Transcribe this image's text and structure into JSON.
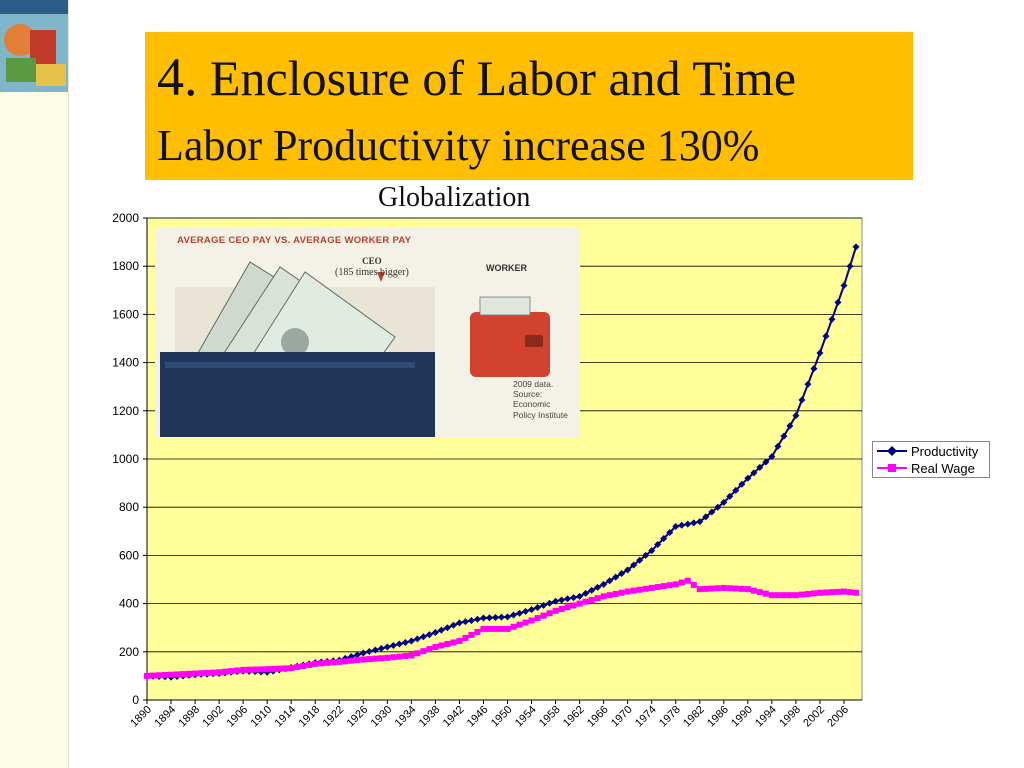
{
  "slide": {
    "title_number": "4.",
    "title_text": "Enclosure of Labor and Time",
    "title_line2": "Labor Productivity increase 130%",
    "annotation": "Globalization"
  },
  "inset": {
    "headline": "AVERAGE CEO PAY VS. AVERAGE WORKER PAY",
    "ceo_label": "CEO",
    "ceo_note": "(185 times bigger)",
    "worker_label": "WORKER",
    "source_note": [
      "2009 data.",
      "Source:",
      "Economic",
      "Policy Institute"
    ]
  },
  "colors": {
    "title_bg": "#ffbf00",
    "plot_bg": "#ffff99",
    "productivity": "#000080",
    "real_wage": "#ff00ff"
  },
  "chart_data": {
    "type": "line",
    "title": "",
    "xlabel": "",
    "ylabel": "",
    "ylim": [
      0,
      2000
    ],
    "yticks": [
      0,
      200,
      400,
      600,
      800,
      1000,
      1200,
      1400,
      1600,
      1800,
      2000
    ],
    "xlim": [
      1890,
      2009
    ],
    "xticks": [
      "1890",
      "1894",
      "1898",
      "1902",
      "1906",
      "1910",
      "1914",
      "1918",
      "1922",
      "1926",
      "1930",
      "1934",
      "1938",
      "1942",
      "1946",
      "1950",
      "1954",
      "1958",
      "1962",
      "1966",
      "1970",
      "1974",
      "1978",
      "1982",
      "1986",
      "1990",
      "1994",
      "1998",
      "2002",
      "2006"
    ],
    "grid": true,
    "legend_position": "right",
    "series": [
      {
        "name": "Productivity",
        "color": "#000080",
        "marker": "diamond",
        "points": [
          [
            1890,
            100
          ],
          [
            1894,
            95
          ],
          [
            1898,
            105
          ],
          [
            1902,
            110
          ],
          [
            1906,
            120
          ],
          [
            1910,
            115
          ],
          [
            1914,
            135
          ],
          [
            1918,
            155
          ],
          [
            1922,
            165
          ],
          [
            1926,
            195
          ],
          [
            1930,
            220
          ],
          [
            1934,
            245
          ],
          [
            1938,
            280
          ],
          [
            1942,
            320
          ],
          [
            1946,
            340
          ],
          [
            1950,
            345
          ],
          [
            1954,
            375
          ],
          [
            1958,
            410
          ],
          [
            1962,
            430
          ],
          [
            1966,
            480
          ],
          [
            1970,
            540
          ],
          [
            1974,
            620
          ],
          [
            1978,
            720
          ],
          [
            1982,
            740
          ],
          [
            1986,
            820
          ],
          [
            1990,
            920
          ],
          [
            1994,
            1010
          ],
          [
            1998,
            1180
          ],
          [
            2002,
            1440
          ],
          [
            2006,
            1720
          ],
          [
            2008,
            1880
          ]
        ]
      },
      {
        "name": "Real Wage",
        "color": "#ff00ff",
        "marker": "square",
        "points": [
          [
            1890,
            100
          ],
          [
            1894,
            105
          ],
          [
            1898,
            110
          ],
          [
            1902,
            115
          ],
          [
            1906,
            125
          ],
          [
            1910,
            128
          ],
          [
            1914,
            132
          ],
          [
            1918,
            150
          ],
          [
            1922,
            158
          ],
          [
            1926,
            168
          ],
          [
            1930,
            175
          ],
          [
            1934,
            185
          ],
          [
            1938,
            220
          ],
          [
            1942,
            245
          ],
          [
            1946,
            295
          ],
          [
            1950,
            295
          ],
          [
            1954,
            330
          ],
          [
            1958,
            370
          ],
          [
            1962,
            400
          ],
          [
            1966,
            430
          ],
          [
            1970,
            450
          ],
          [
            1974,
            465
          ],
          [
            1978,
            480
          ],
          [
            1980,
            495
          ],
          [
            1982,
            460
          ],
          [
            1986,
            465
          ],
          [
            1990,
            460
          ],
          [
            1994,
            435
          ],
          [
            1998,
            435
          ],
          [
            2002,
            445
          ],
          [
            2006,
            450
          ],
          [
            2008,
            445
          ]
        ]
      }
    ]
  }
}
